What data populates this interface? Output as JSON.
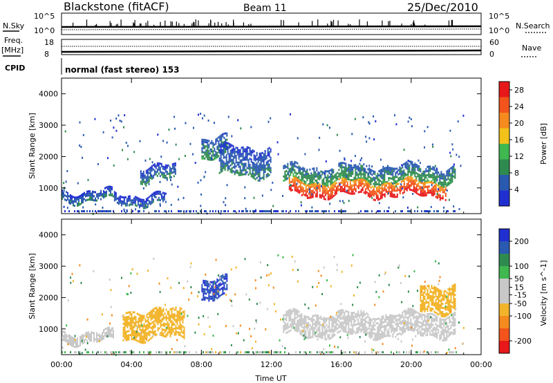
{
  "header": {
    "title": "Blackstone (fitACF)",
    "beam": "Beam 11",
    "date": "25/Dec/2010"
  },
  "top_panels": {
    "nsky_label": "N.Sky",
    "nsearch_label": "N.Search",
    "nsky_ticks": [
      "10^5",
      "10^0"
    ],
    "nsearch_ticks": [
      "10^5",
      "10^0"
    ],
    "freq_label": "Freq.",
    "freq_unit": "[MHz]",
    "freq_ticks": [
      "18",
      "8"
    ],
    "nave_label": "Nave",
    "nave_ticks": [
      "60",
      "0"
    ],
    "cpid_label": "CPID",
    "cpid_text": "normal (fast stereo) 153"
  },
  "colors": {
    "power_scale": [
      "#2030d0",
      "#2a5ab0",
      "#2f8a50",
      "#3fb84f",
      "#f2c21b",
      "#f58a1e",
      "#f2541b",
      "#e8181a"
    ],
    "velocity_scale": [
      "#2030d0",
      "#2a5ab0",
      "#2f8a50",
      "#3fb84f",
      "#c8c8c8",
      "#c8c8c8",
      "#f2b42a",
      "#f58a1e",
      "#f2541b",
      "#e8181a"
    ]
  },
  "chart_data": [
    {
      "type": "heatmap",
      "title": "",
      "xlabel": "",
      "ylabel": "Slant Range [km]",
      "x_range": [
        "00:00",
        "00:00"
      ],
      "x_ticks": [
        "00:00",
        "04:00",
        "08:00",
        "12:00",
        "16:00",
        "20:00",
        "00:00"
      ],
      "ylim": [
        180,
        4500
      ],
      "y_ticks": [
        1000,
        2000,
        3000,
        4000
      ],
      "colorbar": {
        "label": "Power [dB]",
        "ticks": [
          4,
          8,
          12,
          16,
          20,
          24,
          28
        ],
        "range": [
          0,
          30
        ]
      },
      "features": [
        {
          "region": "band",
          "time_start": "00:00",
          "time_end": "03:00",
          "range_km": [
            600,
            900
          ],
          "power_dB": 6
        },
        {
          "region": "band",
          "time_start": "03:00",
          "time_end": "06:00",
          "range_km": [
            500,
            800
          ],
          "power_dB": 5
        },
        {
          "region": "band",
          "time_start": "04:30",
          "time_end": "06:30",
          "range_km": [
            1300,
            1700
          ],
          "power_dB": 6
        },
        {
          "region": "feature",
          "time_start": "08:00",
          "time_end": "09:30",
          "range_km": [
            2000,
            2600
          ],
          "power_dB": 8
        },
        {
          "region": "band",
          "time_start": "09:00",
          "time_end": "12:00",
          "range_km": [
            1400,
            2300
          ],
          "power_dB": 6
        },
        {
          "region": "band",
          "time_start": "12:40",
          "time_end": "22:30",
          "range_km": [
            1200,
            1700
          ],
          "power_dB": 9
        },
        {
          "region": "core",
          "time_start": "13:00",
          "time_end": "22:00",
          "range_km": [
            800,
            1200
          ],
          "power_dB": 26
        }
      ]
    },
    {
      "type": "heatmap",
      "title": "",
      "xlabel": "Time UT",
      "ylabel": "Slant Range [km]",
      "x_range": [
        "00:00",
        "00:00"
      ],
      "x_ticks": [
        "00:00",
        "04:00",
        "08:00",
        "12:00",
        "16:00",
        "20:00",
        "00:00"
      ],
      "ylim": [
        180,
        4500
      ],
      "y_ticks": [
        1000,
        2000,
        3000,
        4000
      ],
      "colorbar": {
        "label": "Velocity [m s^-1]",
        "ticks": [
          200,
          100,
          50,
          15,
          -15,
          -50,
          -100,
          -200
        ],
        "range": [
          -250,
          250
        ]
      },
      "features": [
        {
          "region": "band",
          "time_start": "00:00",
          "time_end": "03:00",
          "range_km": [
            600,
            900
          ],
          "velocity": 0
        },
        {
          "region": "patches",
          "time_start": "03:30",
          "time_end": "07:00",
          "range_km": [
            700,
            1600
          ],
          "velocity": -40
        },
        {
          "region": "feature",
          "time_start": "08:00",
          "time_end": "09:30",
          "range_km": [
            2000,
            2600
          ],
          "velocity": 150
        },
        {
          "region": "band",
          "time_start": "12:40",
          "time_end": "22:30",
          "range_km": [
            800,
            1500
          ],
          "velocity": 0
        },
        {
          "region": "patches",
          "time_start": "20:30",
          "time_end": "22:30",
          "range_km": [
            1600,
            2400
          ],
          "velocity": -40
        }
      ]
    }
  ]
}
